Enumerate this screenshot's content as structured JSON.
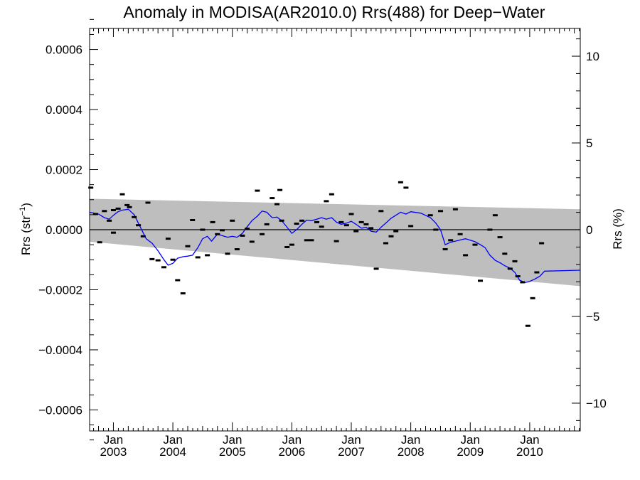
{
  "chart_data": {
    "type": "scatter",
    "title": "Anomaly in MODISA(AR2010.0) Rrs(488) for Deep−Water",
    "ylabel_left": "Rrs (str",
    "ylabel_left_sup": "−1",
    "ylabel_left_close": ")",
    "ylabel_right": "Rrs (%)",
    "xlim": [
      2002.6,
      2010.85
    ],
    "ylim": [
      -0.00067,
      0.00067
    ],
    "ylim_right_pct": [
      -11.6,
      11.6
    ],
    "left_ticks": [
      {
        "value": 0.0006,
        "label": "0.0006"
      },
      {
        "value": 0.0004,
        "label": "0.0004"
      },
      {
        "value": 0.0002,
        "label": "0.0002"
      },
      {
        "value": 0.0,
        "label": "0.0000"
      },
      {
        "value": -0.0002,
        "label": "−0.0002"
      },
      {
        "value": -0.0004,
        "label": "−0.0004"
      },
      {
        "value": -0.0006,
        "label": "−0.0006"
      }
    ],
    "right_ticks": [
      {
        "value": 10,
        "label": "10"
      },
      {
        "value": 5,
        "label": "5"
      },
      {
        "value": 0,
        "label": "0"
      },
      {
        "value": -5,
        "label": "−5"
      },
      {
        "value": -10,
        "label": "−10"
      }
    ],
    "x_ticks": [
      {
        "value": 2003.0,
        "month": "Jan",
        "year": "2003"
      },
      {
        "value": 2004.0,
        "month": "Jan",
        "year": "2004"
      },
      {
        "value": 2005.0,
        "month": "Jan",
        "year": "2005"
      },
      {
        "value": 2006.0,
        "month": "Jan",
        "year": "2006"
      },
      {
        "value": 2007.0,
        "month": "Jan",
        "year": "2007"
      },
      {
        "value": 2008.0,
        "month": "Jan",
        "year": "2008"
      },
      {
        "value": 2009.0,
        "month": "Jan",
        "year": "2009"
      },
      {
        "value": 2010.0,
        "month": "Jan",
        "year": "2010"
      }
    ],
    "zero_line": 0.0,
    "band": {
      "color": "#bebebe",
      "upper": [
        [
          2002.6,
          0.000103
        ],
        [
          2010.85,
          6.8e-05
        ]
      ],
      "lower": [
        [
          2002.6,
          -4e-05
        ],
        [
          2010.85,
          -0.000188
        ]
      ]
    },
    "points_color": "#000000",
    "points": [
      [
        2002.62,
        0.00014
      ],
      [
        2002.7,
        5.2e-05
      ],
      [
        2002.77,
        -4.2e-05
      ],
      [
        2002.85,
        6.2e-05
      ],
      [
        2002.93,
        3e-05
      ],
      [
        2003.0,
        -1e-05
      ],
      [
        2003.0,
        6.5e-05
      ],
      [
        2003.08,
        7e-05
      ],
      [
        2003.15,
        0.000118
      ],
      [
        2003.23,
        8.2e-05
      ],
      [
        2003.27,
        7.5e-05
      ],
      [
        2003.35,
        4.2e-05
      ],
      [
        2003.42,
        1.5e-05
      ],
      [
        2003.5,
        -2.2e-05
      ],
      [
        2003.58,
        9e-05
      ],
      [
        2003.65,
        -9.8e-05
      ],
      [
        2003.75,
        -0.000102
      ],
      [
        2003.85,
        -0.000125
      ],
      [
        2003.92,
        -3e-05
      ],
      [
        2004.0,
        -0.0001
      ],
      [
        2004.08,
        -0.000168
      ],
      [
        2004.17,
        -0.000212
      ],
      [
        2004.25,
        -5.5e-05
      ],
      [
        2004.33,
        3.2e-05
      ],
      [
        2004.42,
        -9.2e-05
      ],
      [
        2004.5,
        0.0
      ],
      [
        2004.58,
        -8.5e-05
      ],
      [
        2004.67,
        2.5e-05
      ],
      [
        2004.75,
        -1.5e-05
      ],
      [
        2004.83,
        -2e-06
      ],
      [
        2004.92,
        -8e-05
      ],
      [
        2005.0,
        3e-05
      ],
      [
        2005.08,
        -6.5e-05
      ],
      [
        2005.17,
        -2e-05
      ],
      [
        2005.25,
        3e-06
      ],
      [
        2005.33,
        -4e-05
      ],
      [
        2005.42,
        0.00013
      ],
      [
        2005.5,
        -1.5e-05
      ],
      [
        2005.58,
        1.8e-05
      ],
      [
        2005.67,
        0.000105
      ],
      [
        2005.75,
        8.5e-05
      ],
      [
        2005.8,
        0.000132
      ],
      [
        2005.83,
        3e-05
      ],
      [
        2005.92,
        -5.8e-05
      ],
      [
        2006.0,
        -5e-05
      ],
      [
        2006.08,
        2e-05
      ],
      [
        2006.17,
        3e-05
      ],
      [
        2006.25,
        -3.5e-05
      ],
      [
        2006.33,
        -3.5e-05
      ],
      [
        2006.42,
        2.5e-05
      ],
      [
        2006.5,
        1e-05
      ],
      [
        2006.58,
        9.5e-05
      ],
      [
        2006.67,
        0.000118
      ],
      [
        2006.75,
        -3.8e-05
      ],
      [
        2006.83,
        2.5e-05
      ],
      [
        2006.92,
        1.5e-05
      ],
      [
        2007.0,
        5.2e-05
      ],
      [
        2007.08,
        -5e-06
      ],
      [
        2007.17,
        2.5e-05
      ],
      [
        2007.25,
        1.8e-05
      ],
      [
        2007.33,
        5e-06
      ],
      [
        2007.42,
        -0.00013
      ],
      [
        2007.5,
        6.2e-05
      ],
      [
        2007.58,
        -4.5e-05
      ],
      [
        2007.67,
        -2.2e-05
      ],
      [
        2007.75,
        -5e-06
      ],
      [
        2007.83,
        0.000158
      ],
      [
        2007.92,
        0.00014
      ],
      [
        2008.0,
        1.2e-05
      ],
      [
        2008.33,
        4.8e-05
      ],
      [
        2008.42,
        0.0
      ],
      [
        2008.5,
        6.2e-05
      ],
      [
        2008.58,
        -6.5e-05
      ],
      [
        2008.67,
        -3.5e-05
      ],
      [
        2008.75,
        6.8e-05
      ],
      [
        2008.83,
        -1.5e-05
      ],
      [
        2008.92,
        -8.5e-05
      ],
      [
        2009.08,
        -5e-05
      ],
      [
        2009.17,
        -0.00017
      ],
      [
        2009.33,
        0.0
      ],
      [
        2009.42,
        4.8e-05
      ],
      [
        2009.5,
        -2.5e-05
      ],
      [
        2009.58,
        -8e-05
      ],
      [
        2009.67,
        -0.00013
      ],
      [
        2009.75,
        -0.000105
      ],
      [
        2009.8,
        -0.000155
      ],
      [
        2009.88,
        -0.000175
      ],
      [
        2009.97,
        -0.00032
      ],
      [
        2010.05,
        -0.000228
      ],
      [
        2010.12,
        -0.000142
      ],
      [
        2010.2,
        -4.5e-05
      ]
    ],
    "line_color": "#0000ff",
    "line": [
      [
        2002.6,
        5.8e-05
      ],
      [
        2002.75,
        5.2e-05
      ],
      [
        2002.85,
        4e-05
      ],
      [
        2002.93,
        3.5e-05
      ],
      [
        2003.0,
        4.8e-05
      ],
      [
        2003.08,
        6e-05
      ],
      [
        2003.15,
        6.5e-05
      ],
      [
        2003.25,
        6.8e-05
      ],
      [
        2003.35,
        5e-05
      ],
      [
        2003.45,
        1e-05
      ],
      [
        2003.55,
        -3e-05
      ],
      [
        2003.65,
        -4.5e-05
      ],
      [
        2003.75,
        -7e-05
      ],
      [
        2003.85,
        -0.0001
      ],
      [
        2003.92,
        -0.000118
      ],
      [
        2004.0,
        -0.000112
      ],
      [
        2004.08,
        -9.5e-05
      ],
      [
        2004.17,
        -9e-05
      ],
      [
        2004.25,
        -8.8e-05
      ],
      [
        2004.33,
        -8.5e-05
      ],
      [
        2004.42,
        -6e-05
      ],
      [
        2004.5,
        -3e-05
      ],
      [
        2004.58,
        -2.2e-05
      ],
      [
        2004.65,
        -3.8e-05
      ],
      [
        2004.75,
        -1.5e-05
      ],
      [
        2004.83,
        -2e-05
      ],
      [
        2004.92,
        -2.5e-05
      ],
      [
        2005.0,
        -2.2e-05
      ],
      [
        2005.08,
        -2.5e-05
      ],
      [
        2005.17,
        -1.2e-05
      ],
      [
        2005.25,
        1e-05
      ],
      [
        2005.33,
        3e-05
      ],
      [
        2005.42,
        4.5e-05
      ],
      [
        2005.5,
        6.2e-05
      ],
      [
        2005.58,
        5.8e-05
      ],
      [
        2005.67,
        4e-05
      ],
      [
        2005.75,
        4.2e-05
      ],
      [
        2005.83,
        3e-05
      ],
      [
        2005.92,
        8e-06
      ],
      [
        2006.0,
        -1.2e-05
      ],
      [
        2006.08,
        0.0
      ],
      [
        2006.17,
        1.8e-05
      ],
      [
        2006.25,
        3.2e-05
      ],
      [
        2006.33,
        3e-05
      ],
      [
        2006.42,
        3.5e-05
      ],
      [
        2006.5,
        4e-05
      ],
      [
        2006.58,
        3.5e-05
      ],
      [
        2006.67,
        4e-05
      ],
      [
        2006.75,
        2.5e-05
      ],
      [
        2006.83,
        1.8e-05
      ],
      [
        2006.92,
        2.2e-05
      ],
      [
        2007.0,
        2.8e-05
      ],
      [
        2007.08,
        1.8e-05
      ],
      [
        2007.17,
        5e-06
      ],
      [
        2007.25,
        8e-06
      ],
      [
        2007.33,
        -5e-06
      ],
      [
        2007.42,
        -8e-06
      ],
      [
        2007.5,
        8e-06
      ],
      [
        2007.58,
        2.2e-05
      ],
      [
        2007.67,
        3.8e-05
      ],
      [
        2007.75,
        4.8e-05
      ],
      [
        2007.83,
        5.8e-05
      ],
      [
        2007.92,
        5.2e-05
      ],
      [
        2008.0,
        6e-05
      ],
      [
        2008.17,
        5.5e-05
      ],
      [
        2008.33,
        4e-05
      ],
      [
        2008.42,
        2.2e-05
      ],
      [
        2008.5,
        0.0
      ],
      [
        2008.58,
        -5e-05
      ],
      [
        2008.67,
        -4.2e-05
      ],
      [
        2008.75,
        -3.8e-05
      ],
      [
        2008.92,
        -3e-05
      ],
      [
        2009.08,
        -4e-05
      ],
      [
        2009.17,
        -5e-05
      ],
      [
        2009.25,
        -6e-05
      ],
      [
        2009.33,
        -8.5e-05
      ],
      [
        2009.42,
        -0.000102
      ],
      [
        2009.5,
        -0.00011
      ],
      [
        2009.58,
        -0.00012
      ],
      [
        2009.67,
        -0.000128
      ],
      [
        2009.75,
        -0.000142
      ],
      [
        2009.83,
        -0.000168
      ],
      [
        2009.92,
        -0.000176
      ],
      [
        2010.0,
        -0.000172
      ],
      [
        2010.08,
        -0.000165
      ],
      [
        2010.17,
        -0.000155
      ],
      [
        2010.25,
        -0.000138
      ],
      [
        2010.85,
        -0.000135
      ]
    ]
  }
}
